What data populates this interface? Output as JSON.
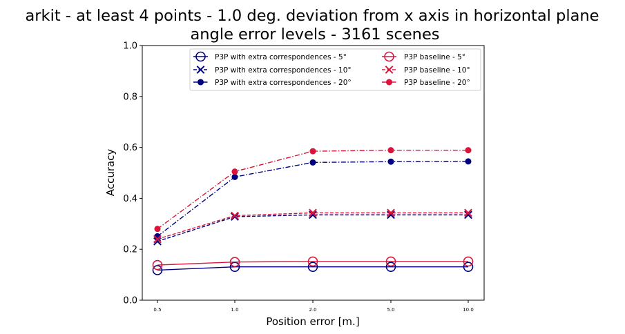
{
  "chart_data": {
    "type": "line",
    "title_line1": "arkit - at least 4 points - 1.0 deg. deviation from x axis in horizontal plane",
    "title_line2": "angle error levels - 3161 scenes",
    "xlabel": "Position error [m.]",
    "ylabel": "Accuracy",
    "categories": [
      "0.5",
      "1.0",
      "2.0",
      "5.0",
      "10.0"
    ],
    "yticks": [
      "0.0",
      "0.2",
      "0.4",
      "0.6",
      "0.8",
      "1.0"
    ],
    "ylim": [
      0,
      1
    ],
    "grid": false,
    "legend_position": "top-right",
    "series": [
      {
        "name": "P3P with extra correspondences - 5°",
        "color": "#000080",
        "linestyle": "solid",
        "marker": "open-circle",
        "values": [
          0.118,
          0.131,
          0.131,
          0.131,
          0.131
        ]
      },
      {
        "name": "P3P with extra correspondences - 10°",
        "color": "#000080",
        "linestyle": "dashed",
        "marker": "x",
        "values": [
          0.231,
          0.328,
          0.335,
          0.335,
          0.335
        ]
      },
      {
        "name": "P3P with extra correspondences - 20°",
        "color": "#000080",
        "linestyle": "dashdot",
        "marker": "filled-circle",
        "values": [
          0.251,
          0.484,
          0.541,
          0.544,
          0.545
        ]
      },
      {
        "name": "P3P baseline - 5°",
        "color": "#dc143c",
        "linestyle": "solid",
        "marker": "open-circle",
        "values": [
          0.138,
          0.15,
          0.152,
          0.152,
          0.152
        ]
      },
      {
        "name": "P3P baseline - 10°",
        "color": "#dc143c",
        "linestyle": "dashed",
        "marker": "x",
        "values": [
          0.24,
          0.332,
          0.343,
          0.343,
          0.343
        ]
      },
      {
        "name": "P3P baseline - 20°",
        "color": "#dc143c",
        "linestyle": "dashdot",
        "marker": "filled-circle",
        "values": [
          0.28,
          0.505,
          0.585,
          0.589,
          0.589
        ]
      }
    ]
  }
}
